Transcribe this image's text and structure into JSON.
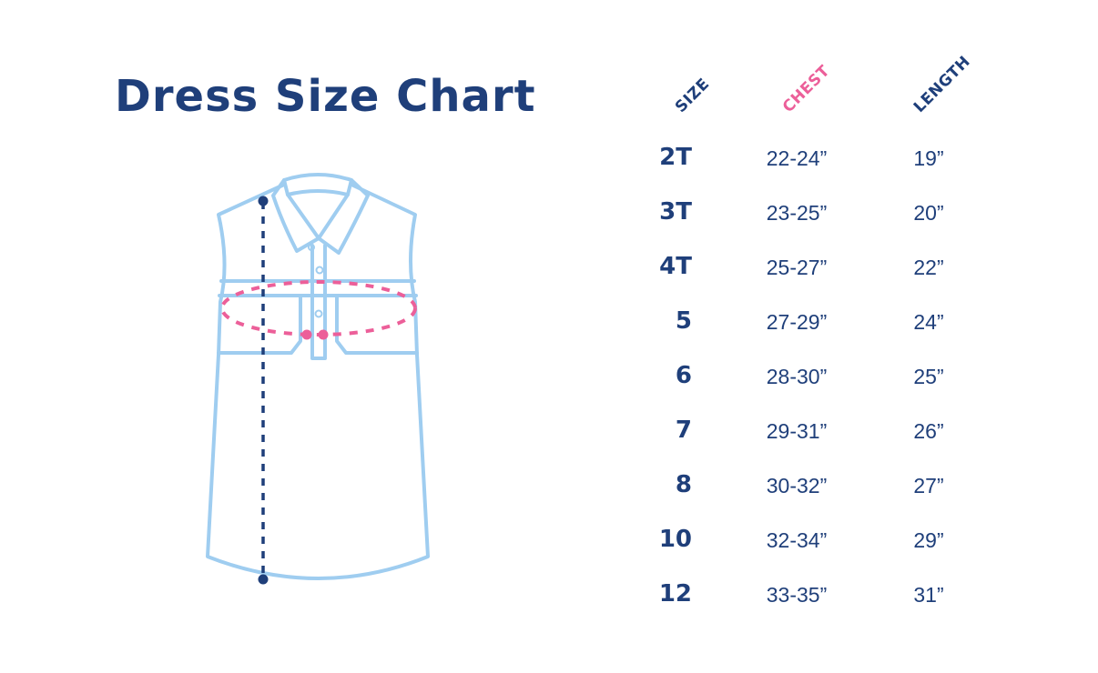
{
  "title": "Dress Size Chart",
  "colors": {
    "navy": "#1f3f7a",
    "pink": "#ec5f99",
    "garment_outline": "#9fcdf0"
  },
  "table": {
    "headers": {
      "size": "SIZE",
      "chest": "CHEST",
      "length": "LENGTH"
    },
    "rows": [
      {
        "size": "2T",
        "chest": "22-24”",
        "length": "19”"
      },
      {
        "size": "3T",
        "chest": "23-25”",
        "length": "20”"
      },
      {
        "size": "4T",
        "chest": "25-27”",
        "length": "22”"
      },
      {
        "size": "5",
        "chest": "27-29”",
        "length": "24”"
      },
      {
        "size": "6",
        "chest": "28-30”",
        "length": "25”"
      },
      {
        "size": "7",
        "chest": "29-31”",
        "length": "26”"
      },
      {
        "size": "8",
        "chest": "30-32”",
        "length": "27”"
      },
      {
        "size": "10",
        "chest": "32-34”",
        "length": "29”"
      },
      {
        "size": "12",
        "chest": "33-35”",
        "length": "31”"
      }
    ]
  }
}
